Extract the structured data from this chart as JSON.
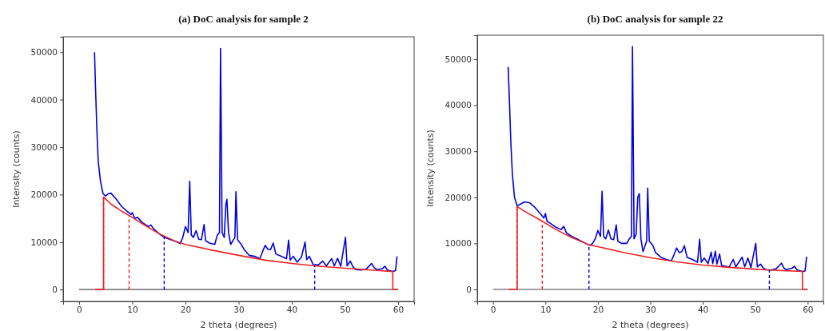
{
  "chart_data": [
    {
      "type": "line",
      "title": "(a) DoC analysis for sample 2",
      "xlabel": "2 theta (degrees)",
      "ylabel": "Intensity (counts)",
      "xlim": [
        -3,
        63
      ],
      "ylim": [
        -2500,
        53250
      ],
      "xticks": [
        0,
        10,
        20,
        30,
        40,
        50,
        60
      ],
      "yticks": [
        0,
        10000,
        20000,
        30000,
        40000,
        50000
      ],
      "grid": false,
      "series": [
        {
          "color": "#808080",
          "x": [
            0,
            60
          ],
          "values": [
            0,
            0
          ]
        },
        {
          "color": "#0000dd",
          "x": [
            2.9,
            3.1,
            3.4,
            3.6,
            4.0,
            4.5,
            5.0,
            5.5,
            6.0,
            7,
            8,
            9,
            9.8,
            10,
            10.5,
            11,
            12,
            13,
            13.5,
            14,
            15,
            16,
            17,
            18,
            19,
            19.5,
            20,
            20.5,
            20.8,
            21.1,
            21.5,
            22,
            22.5,
            23,
            23.5,
            23.8,
            24.5,
            25.5,
            26,
            26.4,
            26.6,
            26.9,
            27.3,
            27.6,
            27.8,
            28.1,
            28.5,
            29.3,
            29.5,
            29.8,
            30.5,
            31,
            32,
            33,
            34,
            34.5,
            35,
            35.5,
            36,
            36.5,
            37,
            38,
            39,
            39.4,
            39.7,
            40.3,
            41,
            41.8,
            42.5,
            42.8,
            43.3,
            44,
            45,
            45.8,
            46.5,
            47.5,
            48,
            48.6,
            49.2,
            50.1,
            50.4,
            51,
            51.5,
            52,
            53,
            54,
            55,
            55.5,
            56,
            57,
            57.5,
            58,
            59,
            59.5,
            59.8
          ],
          "values": [
            50000,
            42000,
            32000,
            27000,
            23000,
            20200,
            19700,
            20200,
            20300,
            19000,
            17500,
            16500,
            15800,
            16200,
            15000,
            15200,
            14000,
            13300,
            13600,
            12800,
            11800,
            11000,
            10600,
            10200,
            9700,
            11000,
            13300,
            12000,
            22800,
            11500,
            11000,
            12400,
            10600,
            10500,
            13700,
            10300,
            9800,
            9500,
            11500,
            12000,
            50800,
            12000,
            11000,
            18000,
            19000,
            12000,
            9500,
            11000,
            20600,
            10500,
            9500,
            8500,
            7200,
            7000,
            6500,
            8000,
            9300,
            8500,
            8400,
            9800,
            7500,
            7000,
            6500,
            10400,
            6200,
            7000,
            5800,
            6800,
            10000,
            6300,
            7000,
            5300,
            5200,
            6000,
            5000,
            6500,
            5000,
            6600,
            4900,
            11000,
            5000,
            6000,
            4800,
            4200,
            4100,
            4300,
            5500,
            4600,
            4200,
            4400,
            4900,
            4100,
            3800,
            4000,
            7000
          ]
        },
        {
          "color": "#ee2222",
          "x": [
            3,
            4.6,
            4.6,
            6,
            8,
            10,
            12,
            15,
            18,
            20,
            25,
            30,
            35,
            40,
            44.3,
            50,
            55,
            59,
            59,
            60
          ],
          "values": [
            0,
            0,
            19500,
            18000,
            16500,
            15200,
            13800,
            11800,
            10200,
            9500,
            8300,
            7200,
            6200,
            5500,
            5000,
            4500,
            4100,
            3800,
            0,
            0
          ]
        },
        {
          "color": "#ee2222",
          "line_style": "dashed",
          "x": [
            4.6,
            4.6
          ],
          "values": [
            0,
            19500
          ]
        },
        {
          "color": "#ee2222",
          "line_style": "dashed",
          "x": [
            9.4,
            9.4
          ],
          "values": [
            0,
            15500
          ]
        },
        {
          "color": "#0000dd",
          "line_style": "dashed",
          "x": [
            16,
            16
          ],
          "values": [
            0,
            11000
          ]
        },
        {
          "color": "#0000dd",
          "line_style": "dashed",
          "x": [
            44.3,
            44.3
          ],
          "values": [
            0,
            5000
          ]
        }
      ]
    },
    {
      "type": "line",
      "title": "(b) DoC analysis for sample 22",
      "xlabel": "2 theta (degrees)",
      "ylabel": "Intensity (counts)",
      "xlim": [
        -3,
        63
      ],
      "ylim": [
        -2600,
        55200
      ],
      "xticks": [
        0,
        10,
        20,
        30,
        40,
        50,
        60
      ],
      "yticks": [
        0,
        10000,
        20000,
        30000,
        40000,
        50000
      ],
      "grid": false,
      "series": [
        {
          "color": "#808080",
          "x": [
            0,
            60
          ],
          "values": [
            0,
            0
          ]
        },
        {
          "color": "#0000dd",
          "x": [
            2.9,
            3.1,
            3.4,
            3.7,
            4.1,
            4.6,
            5.2,
            6,
            7,
            8,
            9,
            9.7,
            10,
            10.3,
            11,
            12,
            13,
            13.5,
            14,
            15,
            16,
            17,
            18,
            18.5,
            19,
            19.5,
            20,
            20.5,
            20.8,
            21.1,
            21.5,
            22,
            22.5,
            23,
            23.5,
            23.8,
            24.5,
            25.5,
            26,
            26.4,
            26.6,
            26.9,
            27.3,
            27.6,
            27.9,
            28.2,
            28.6,
            29.3,
            29.5,
            29.8,
            30.5,
            31,
            32,
            33,
            34,
            34.5,
            35,
            35.5,
            36,
            36.5,
            37,
            38,
            39,
            39.4,
            39.7,
            40.3,
            41,
            41.6,
            41.9,
            42.4,
            42.7,
            43.2,
            43.6,
            44.5,
            45,
            45.8,
            46.3,
            47.5,
            48,
            48.6,
            49.2,
            50.1,
            50.4,
            51,
            51.5,
            52,
            53,
            54,
            55,
            55.5,
            56,
            57,
            57.5,
            58,
            59,
            59.5,
            59.8
          ],
          "values": [
            48300,
            42000,
            32000,
            25000,
            20000,
            18200,
            18500,
            19000,
            18800,
            17800,
            16500,
            15500,
            16500,
            14800,
            14300,
            13500,
            13000,
            13700,
            12300,
            11500,
            11000,
            10400,
            9800,
            9600,
            10000,
            11000,
            12800,
            11500,
            21300,
            11500,
            11000,
            12900,
            11000,
            10800,
            14000,
            10500,
            10000,
            10000,
            11000,
            11500,
            52700,
            11000,
            12000,
            20000,
            20800,
            11000,
            8200,
            10500,
            22000,
            10500,
            9500,
            8000,
            7000,
            6500,
            6200,
            7500,
            9000,
            8000,
            8200,
            9500,
            7000,
            6500,
            5900,
            10900,
            5900,
            6800,
            5600,
            8100,
            5600,
            8300,
            5500,
            7700,
            5200,
            5000,
            4800,
            6500,
            4900,
            7000,
            4900,
            6800,
            4800,
            10000,
            4900,
            5500,
            4700,
            4300,
            4200,
            4500,
            5700,
            4600,
            4300,
            4600,
            5000,
            4200,
            3900,
            4000,
            7100
          ]
        },
        {
          "color": "#ee2222",
          "x": [
            3,
            4.6,
            4.6,
            6,
            8,
            9.4,
            12,
            15,
            18.3,
            20,
            25,
            30,
            35,
            40,
            45,
            50,
            52.7,
            55,
            59,
            59,
            60
          ],
          "values": [
            0,
            0,
            18000,
            17000,
            15700,
            14800,
            13000,
            11300,
            9700,
            9300,
            8000,
            6900,
            6000,
            5300,
            4800,
            4400,
            4200,
            4100,
            3900,
            0,
            0
          ]
        },
        {
          "color": "#ee2222",
          "line_style": "dashed",
          "x": [
            4.6,
            4.6
          ],
          "values": [
            0,
            18000
          ]
        },
        {
          "color": "#ee2222",
          "line_style": "dashed",
          "x": [
            9.4,
            9.4
          ],
          "values": [
            0,
            14800
          ]
        },
        {
          "color": "#0000dd",
          "line_style": "dashed",
          "x": [
            18.3,
            18.3
          ],
          "values": [
            0,
            9700
          ]
        },
        {
          "color": "#0000dd",
          "line_style": "dashed",
          "x": [
            52.7,
            52.7
          ],
          "values": [
            0,
            4200
          ]
        }
      ]
    }
  ]
}
